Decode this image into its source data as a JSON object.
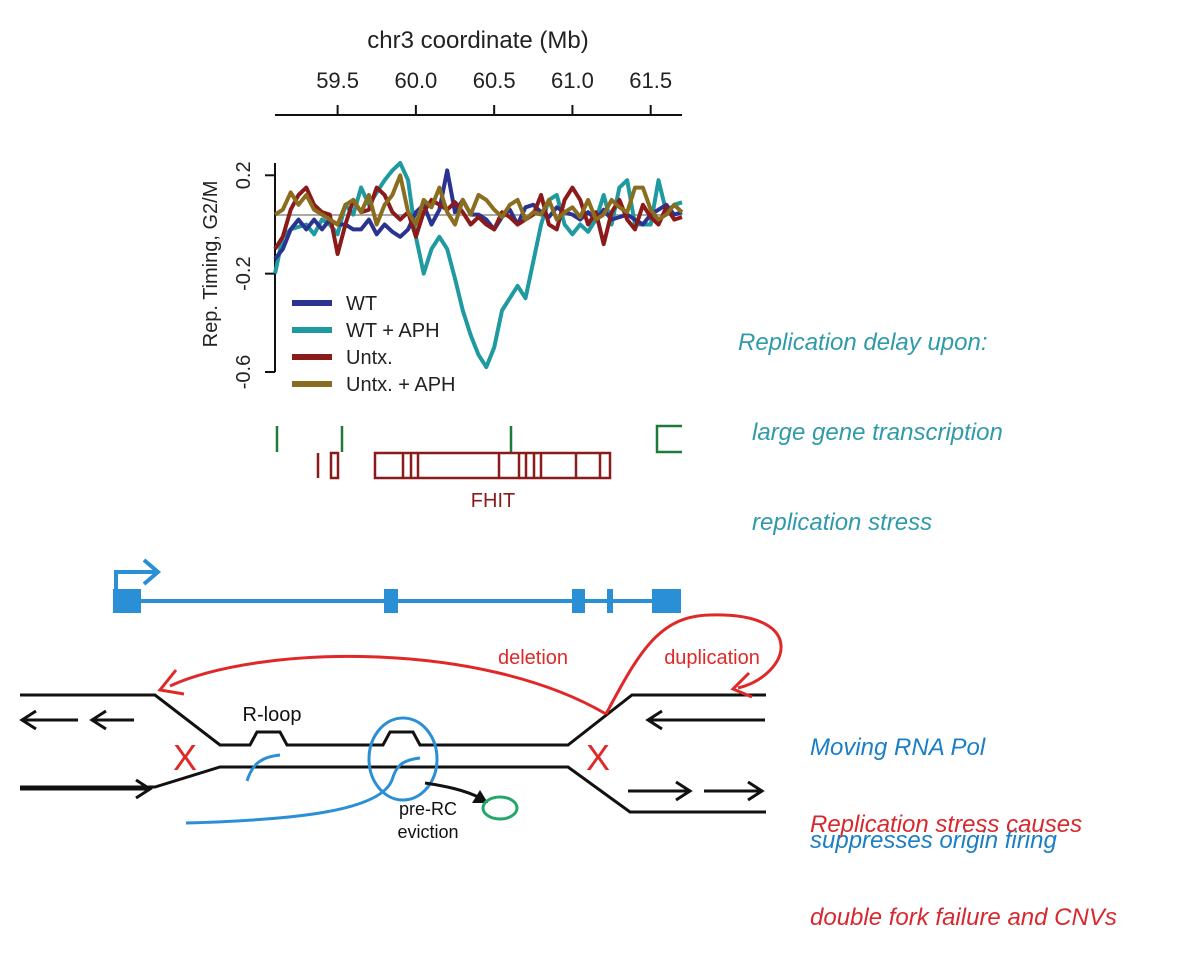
{
  "colors": {
    "wt": "#2b3390",
    "wt_aph": "#1e9aa0",
    "untx": "#8b1a1a",
    "untx_aph": "#8b6d1f",
    "gene_blue": "#2a8fd4",
    "red": "#e02828",
    "green": "#1f7a3a",
    "black": "#111111",
    "note_teal": "#2e9aaa",
    "note_blue": "#1a7fc6",
    "note_red": "#d8282e"
  },
  "chart_data": {
    "type": "line",
    "xlabel": "chr3 coordinate (Mb)",
    "ylabel": "Rep. Timing, G2/M",
    "x_ticks": [
      "59.5",
      "60.0",
      "60.5",
      "61.0",
      "61.5"
    ],
    "y_ticks": [
      "0.2",
      "-0.2",
      "-0.6"
    ],
    "xlim": [
      59.1,
      61.7
    ],
    "ylim": [
      -0.6,
      0.25
    ],
    "x": [
      59.1,
      59.15,
      59.2,
      59.25,
      59.3,
      59.35,
      59.4,
      59.45,
      59.5,
      59.55,
      59.6,
      59.65,
      59.7,
      59.75,
      59.8,
      59.85,
      59.9,
      59.95,
      60.0,
      60.05,
      60.1,
      60.15,
      60.2,
      60.25,
      60.3,
      60.35,
      60.4,
      60.45,
      60.5,
      60.55,
      60.6,
      60.65,
      60.7,
      60.75,
      60.8,
      60.85,
      60.9,
      60.95,
      61.0,
      61.05,
      61.1,
      61.15,
      61.2,
      61.25,
      61.3,
      61.35,
      61.4,
      61.45,
      61.5,
      61.55,
      61.6,
      61.65,
      61.7
    ],
    "series": [
      {
        "name": "WT",
        "color_key": "wt",
        "values": [
          -0.14,
          -0.1,
          -0.02,
          0.02,
          -0.02,
          0.02,
          -0.02,
          0.02,
          0.0,
          0.0,
          -0.02,
          -0.02,
          0.02,
          -0.04,
          0.0,
          -0.03,
          -0.05,
          -0.02,
          0.05,
          0.08,
          0.0,
          0.06,
          0.22,
          0.05,
          0.1,
          0.04,
          0.04,
          0.02,
          -0.02,
          0.03,
          0.06,
          0.0,
          0.07,
          0.08,
          0.05,
          0.03,
          0.07,
          0.05,
          0.04,
          0.02,
          0.05,
          0.02,
          0.06,
          0.02,
          0.03,
          0.04,
          0.02,
          0.0,
          0.04,
          0.06,
          0.08,
          0.04,
          0.05
        ]
      },
      {
        "name": "WT + APH",
        "color_key": "wt_aph",
        "values": [
          -0.2,
          -0.05,
          -0.02,
          -0.01,
          0.0,
          -0.04,
          0.02,
          0.0,
          -0.04,
          0.08,
          0.04,
          0.15,
          0.08,
          0.13,
          0.18,
          0.22,
          0.25,
          0.18,
          -0.05,
          -0.2,
          -0.1,
          -0.05,
          -0.1,
          -0.22,
          -0.35,
          -0.45,
          -0.53,
          -0.58,
          -0.5,
          -0.35,
          -0.3,
          -0.25,
          -0.3,
          -0.15,
          0.0,
          0.1,
          0.12,
          0.0,
          -0.04,
          0.0,
          -0.03,
          0.02,
          0.12,
          0.0,
          0.15,
          0.18,
          0.0,
          0.0,
          0.0,
          0.18,
          0.05,
          0.08,
          0.09
        ]
      },
      {
        "name": "Untx.",
        "color_key": "untx",
        "values": [
          -0.1,
          -0.05,
          0.06,
          0.12,
          0.15,
          0.08,
          0.05,
          0.04,
          -0.12,
          0.0,
          0.1,
          0.05,
          0.06,
          0.15,
          0.12,
          0.05,
          0.02,
          0.05,
          -0.05,
          0.05,
          0.1,
          0.08,
          0.06,
          0.09,
          0.05,
          0.0,
          0.03,
          0.0,
          -0.02,
          0.05,
          0.03,
          0.0,
          0.02,
          0.04,
          0.12,
          0.0,
          -0.02,
          0.1,
          0.15,
          0.1,
          0.0,
          0.05,
          -0.08,
          0.05,
          0.1,
          0.02,
          -0.02,
          0.08,
          0.03,
          0.0,
          0.07,
          0.02,
          0.03
        ]
      },
      {
        "name": "Untx. + APH",
        "color_key": "untx_aph",
        "values": [
          0.04,
          0.06,
          0.13,
          0.08,
          0.12,
          0.06,
          0.04,
          0.02,
          0.0,
          0.08,
          0.1,
          0.05,
          0.12,
          0.0,
          0.08,
          0.12,
          0.2,
          0.05,
          0.0,
          0.1,
          0.07,
          0.15,
          0.05,
          0.0,
          0.1,
          0.04,
          0.12,
          0.1,
          0.06,
          0.03,
          0.08,
          0.1,
          0.02,
          0.05,
          0.04,
          0.1,
          0.02,
          0.05,
          0.07,
          0.03,
          0.1,
          0.02,
          0.04,
          0.1,
          0.07,
          0.05,
          0.15,
          0.15,
          0.06,
          0.02,
          0.04,
          0.08,
          0.05
        ]
      }
    ]
  },
  "track": {
    "gene_label": "FHIT"
  },
  "notes": {
    "delay_title": "Replication delay upon:",
    "delay_line1": "large gene transcription",
    "delay_line2": "replication stress",
    "pol_line1": "Moving RNA Pol",
    "pol_line2": "suppresses origin firing",
    "stress_line1": "Replication stress causes",
    "stress_line2": "double fork failure and CNVs"
  },
  "diagram": {
    "deletion": "deletion",
    "duplication": "duplication",
    "rloop": "R-loop",
    "prerc_line1": "pre-RC",
    "prerc_line2": "eviction",
    "x_mark": "X"
  }
}
